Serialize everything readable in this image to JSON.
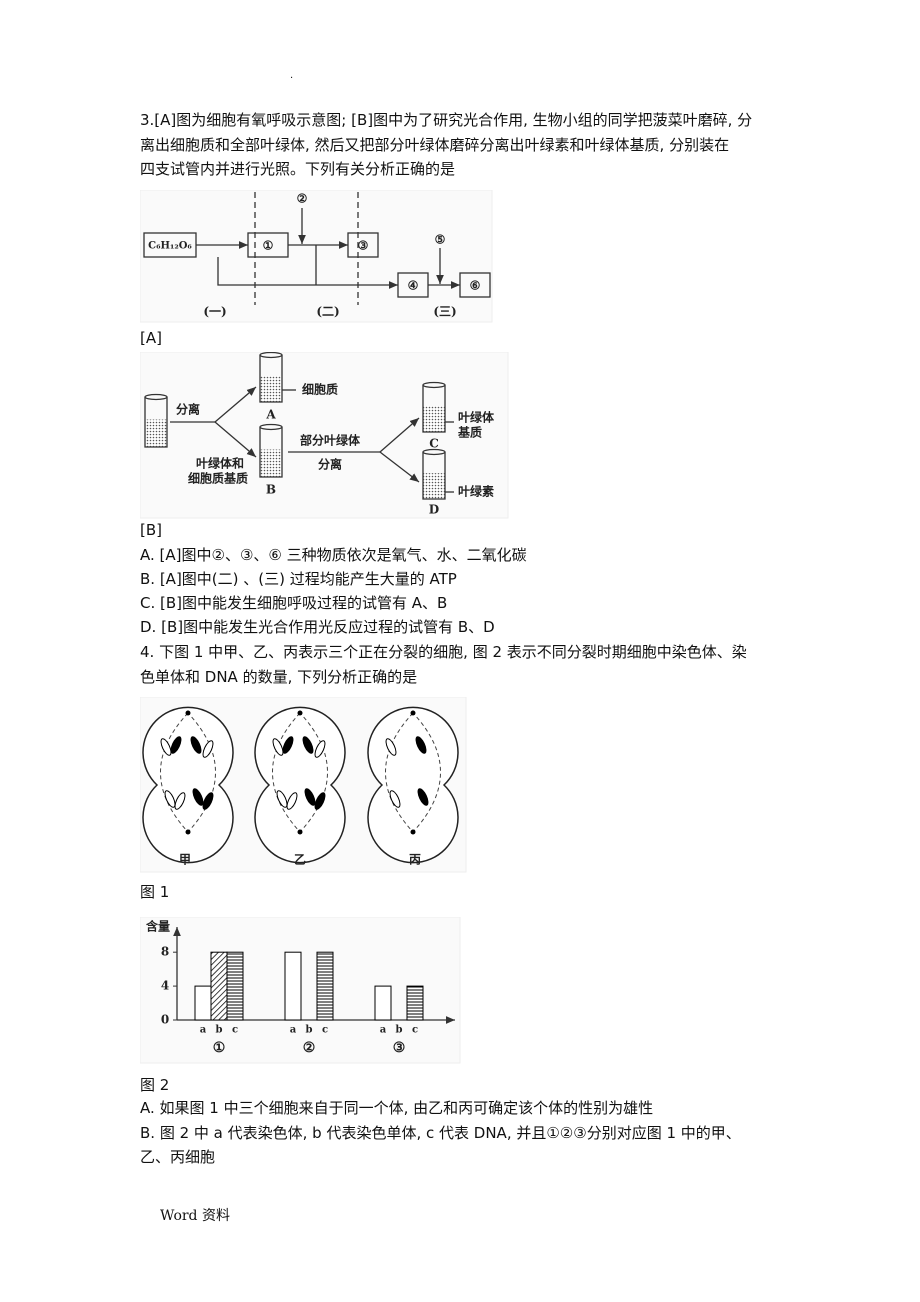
{
  "header_mark": ".",
  "questions": [
    {
      "stem_lines": [
        "3.[A]图为细胞有氧呼吸示意图; [B]图中为了研究光合作用, 生物小组的同学把菠菜叶磨碎, 分",
        "离出细胞质和全部叶绿体, 然后又把部分叶绿体磨碎分离出叶绿素和叶绿体基质, 分别装在",
        "四支试管内并进行光照。下列有关分析正确的是"
      ],
      "figure_a": {
        "labels": [
          "C₆H₁₂O₆",
          "①",
          "②",
          "③",
          "④",
          "⑤",
          "⑥",
          "(一)",
          "(二)",
          "(三)"
        ],
        "caption": "[A]"
      },
      "figure_b": {
        "labels": [
          "分离",
          "细胞质",
          "A",
          "B",
          "叶绿体和",
          "细胞质基质",
          "部分叶绿体",
          "分离",
          "C",
          "叶绿体",
          "基质",
          "D",
          "叶绿素"
        ],
        "caption": "[B]"
      },
      "options": [
        [
          "A. [A]图中②、③、⑥ 三种物质依次是氧气、水、二氧化碳"
        ],
        [
          "B. [A]图中(二) 、(三) 过程均能产生大量的 ATP"
        ],
        [
          "C. [B]图中能发生细胞呼吸过程的试管有 A、B"
        ],
        [
          "D. [B]图中能发生光合作用光反应过程的试管有 B、D"
        ]
      ]
    },
    {
      "stem_lines": [
        "4.  下图 1 中甲、乙、丙表示三个正在分裂的细胞, 图 2 表示不同分裂时期细胞中染色体、染",
        "色单体和 DNA 的数量, 下列分析正确的是"
      ],
      "figure_1": {
        "labels": [
          "甲",
          "乙",
          "丙"
        ],
        "caption": "图 1"
      },
      "figure_2": {
        "caption": "图 2"
      },
      "options": [
        [
          "A.  如果图 1 中三个细胞来自于同一个体, 由乙和丙可确定该个体的性别为雄性"
        ],
        [
          "B.  图 2 中 a 代表染色体, b 代表染色单体, c 代表 DNA, 并且①②③分别对应图 1 中的甲、",
          "乙、丙细胞"
        ]
      ]
    }
  ],
  "chart_data": {
    "type": "bar",
    "ylabel": "含量",
    "categories": [
      "①",
      "②",
      "③"
    ],
    "series": [
      {
        "name": "a",
        "color": "#ffffff",
        "pattern": "blank",
        "values": [
          4,
          8,
          4
        ]
      },
      {
        "name": "b",
        "color": "#000000",
        "pattern": "hatch",
        "values": [
          8,
          0,
          0
        ]
      },
      {
        "name": "c",
        "color": "#000000",
        "pattern": "stripes",
        "values": [
          8,
          8,
          4
        ]
      }
    ],
    "ylim": [
      0,
      10.5
    ],
    "yticks": [
      0,
      4,
      8
    ]
  },
  "footer": "Word  资料"
}
